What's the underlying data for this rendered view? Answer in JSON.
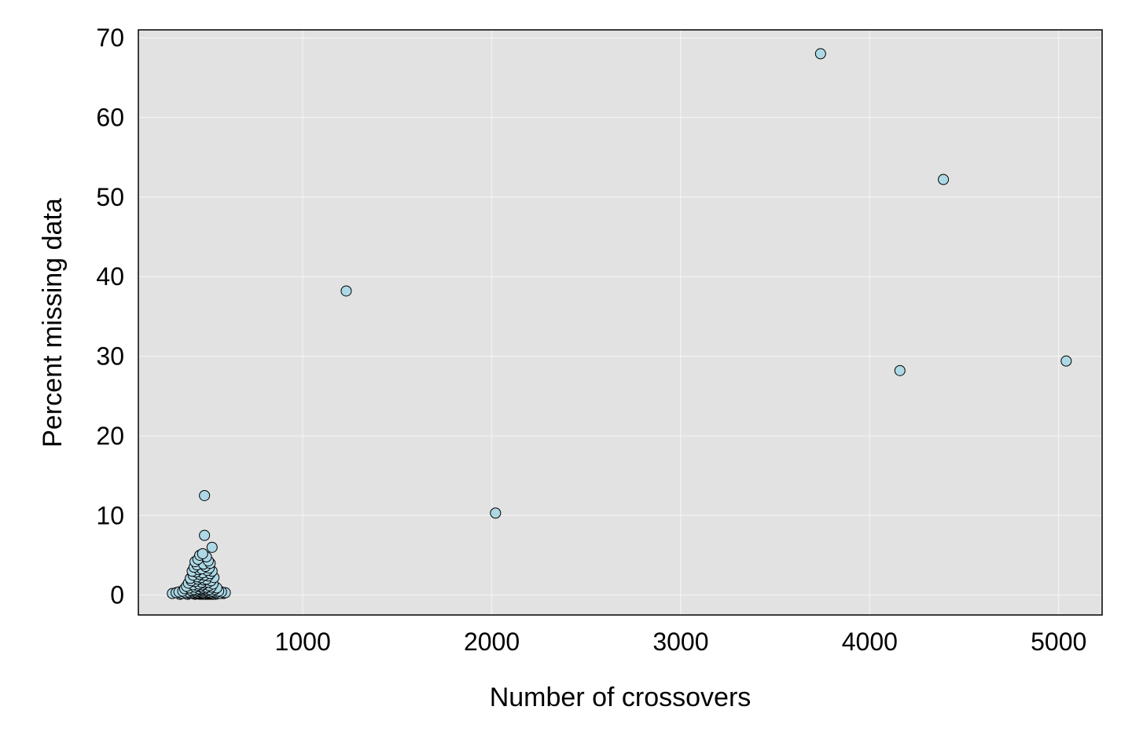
{
  "chart_data": {
    "type": "scatter",
    "title": "",
    "xlabel": "Number of crossovers",
    "ylabel": "Percent missing data",
    "xlim": [
      130,
      5230
    ],
    "ylim": [
      -2.5,
      71
    ],
    "xticks": [
      1000,
      2000,
      3000,
      4000,
      5000
    ],
    "yticks": [
      0,
      10,
      20,
      30,
      40,
      50,
      60,
      70
    ],
    "grid": true,
    "background": "#e2e2e2",
    "point_color": "#add8e6",
    "series": [
      {
        "x": [
          3740,
          4390,
          1230,
          4160,
          5040,
          2020,
          480,
          480,
          520,
          470,
          455,
          490,
          445,
          500,
          430,
          510,
          475,
          440,
          485,
          425,
          505,
          465,
          450,
          495,
          415,
          520,
          435,
          470,
          510,
          455,
          420,
          480,
          500,
          440,
          460,
          530,
          405,
          490,
          445,
          475,
          410,
          515,
          430,
          465,
          500,
          395,
          480,
          450,
          525,
          420,
          470,
          440,
          505,
          385,
          460,
          490,
          430,
          515,
          470,
          400,
          545,
          450,
          480,
          375,
          505,
          425,
          535,
          460,
          410,
          495,
          440,
          470,
          365,
          520,
          450,
          555,
          415,
          485,
          345,
          500,
          430,
          570,
          460,
          395,
          530,
          330,
          470,
          510,
          440,
          590,
          420,
          485,
          455,
          380,
          540,
          500,
          470,
          360,
          520,
          435,
          490,
          310,
          415,
          465,
          560,
          445,
          505,
          580,
          400,
          525,
          475,
          350,
          455,
          540,
          495,
          430,
          470,
          510,
          390,
          485
        ],
        "y": [
          68.0,
          52.2,
          38.2,
          28.2,
          29.4,
          10.3,
          12.5,
          7.5,
          6.0,
          5.2,
          5.0,
          4.8,
          4.5,
          4.3,
          4.2,
          4.0,
          3.9,
          3.8,
          3.6,
          3.5,
          3.4,
          3.3,
          3.2,
          3.1,
          3.0,
          3.0,
          2.9,
          2.8,
          2.7,
          2.6,
          2.5,
          2.5,
          2.4,
          2.3,
          2.2,
          2.2,
          2.1,
          2.0,
          2.0,
          1.9,
          1.8,
          1.8,
          1.7,
          1.6,
          1.6,
          1.5,
          1.5,
          1.4,
          1.4,
          1.3,
          1.3,
          1.2,
          1.2,
          1.1,
          1.1,
          1.0,
          1.0,
          1.0,
          0.9,
          0.9,
          0.9,
          0.8,
          0.8,
          0.8,
          0.7,
          0.7,
          0.7,
          0.7,
          0.6,
          0.6,
          0.6,
          0.6,
          0.5,
          0.5,
          0.5,
          0.5,
          0.5,
          0.5,
          0.4,
          0.4,
          0.4,
          0.4,
          0.4,
          0.4,
          0.4,
          0.3,
          0.3,
          0.3,
          0.3,
          0.3,
          0.3,
          0.3,
          0.3,
          0.3,
          0.3,
          0.3,
          0.3,
          0.2,
          0.2,
          0.2,
          0.2,
          0.2,
          0.2,
          0.2,
          0.2,
          0.2,
          0.2,
          0.2,
          0.2,
          0.1,
          0.1,
          0.1,
          0.1,
          0.1,
          0.1,
          0.1,
          0.1,
          0.1,
          0.1,
          0.1
        ]
      }
    ]
  }
}
